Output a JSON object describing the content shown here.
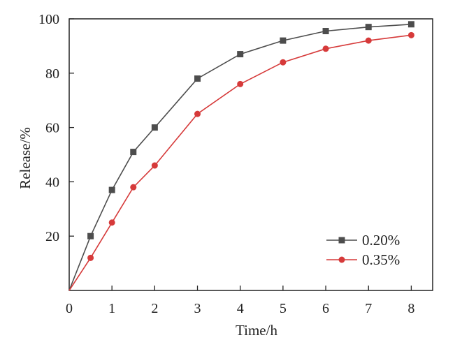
{
  "chart_data": {
    "type": "line",
    "xlabel": "Time/h",
    "ylabel": "Release/%",
    "xlim": [
      0,
      8.5
    ],
    "ylim": [
      0,
      100
    ],
    "x_ticks": [
      0,
      1,
      2,
      3,
      4,
      5,
      6,
      7,
      8
    ],
    "y_ticks": [
      20,
      40,
      60,
      80,
      100
    ],
    "origin_label": "0",
    "grid": false,
    "legend_position": "bottom-right",
    "series": [
      {
        "name": "0.20%",
        "marker": "square",
        "color": "#4d4d4d",
        "x": [
          0,
          0.5,
          1,
          1.5,
          2,
          3,
          4,
          5,
          6,
          7,
          8
        ],
        "y": [
          0,
          20,
          37,
          51,
          60,
          78,
          87,
          92,
          95.5,
          97,
          98
        ]
      },
      {
        "name": "0.35%",
        "marker": "circle",
        "color": "#d63a3a",
        "x": [
          0,
          0.5,
          1,
          1.5,
          2,
          3,
          4,
          5,
          6,
          7,
          8
        ],
        "y": [
          0,
          12,
          25,
          38,
          46,
          65,
          76,
          84,
          89,
          92,
          94
        ]
      }
    ]
  }
}
